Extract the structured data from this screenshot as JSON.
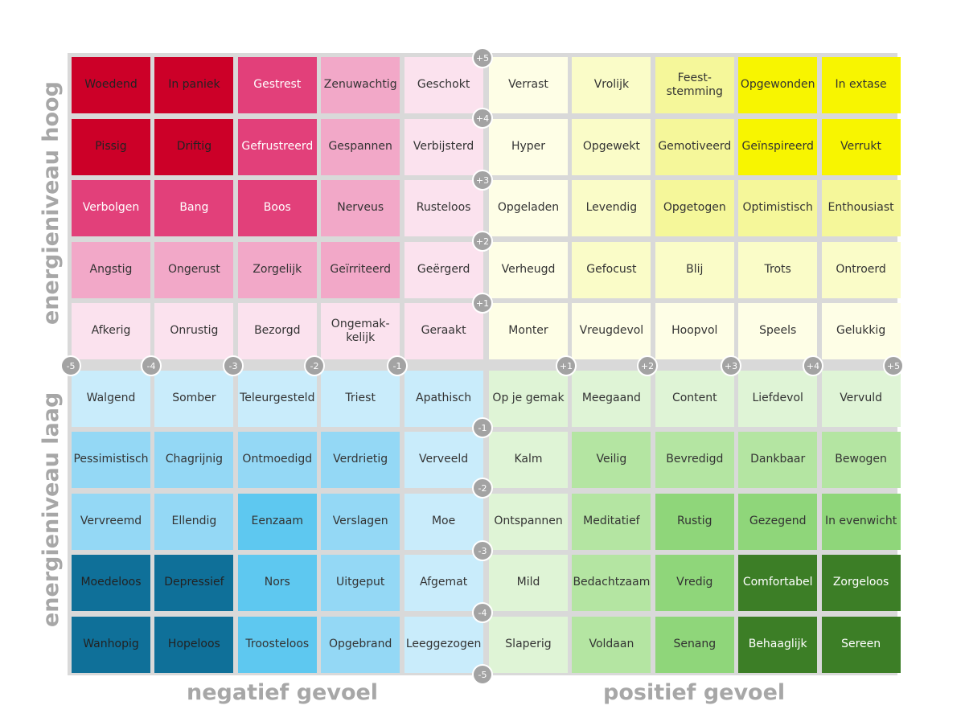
{
  "axis_labels": {
    "negative": "negatief gevoel",
    "positive": "positief gevoel",
    "high": "energieniveau hoog",
    "low": "energieniveau laag"
  },
  "palette": {
    "r1": "#cc0028",
    "r2": "#e2407a",
    "r3": "#f2a8c8",
    "r4": "#fbe2ee",
    "y1": "#f8f500",
    "y2": "#f5f79a",
    "y3": "#fafcc8",
    "y4": "#fefee6",
    "b1": "#0f7099",
    "b2": "#5ec8f0",
    "b3": "#94d8f5",
    "b4": "#c9ecfb",
    "g1": "#3c7e26",
    "g2": "#8fd67a",
    "g3": "#b4e5a2",
    "g4": "#dff4d6"
  },
  "rows": [
    {
      "cells": [
        {
          "text": "Woedend",
          "color": "r1"
        },
        {
          "text": "In paniek",
          "color": "r1"
        },
        {
          "text": "Gestrest",
          "color": "r2"
        },
        {
          "text": "Zenuwachtig",
          "color": "r3"
        },
        {
          "text": "Geschokt",
          "color": "r4"
        },
        {
          "text": "Verrast",
          "color": "y4"
        },
        {
          "text": "Vrolijk",
          "color": "y3"
        },
        {
          "text": "Feest-\nstemming",
          "color": "y2"
        },
        {
          "text": "Opgewonden",
          "color": "y1"
        },
        {
          "text": "In extase",
          "color": "y1"
        }
      ]
    },
    {
      "cells": [
        {
          "text": "Pissig",
          "color": "r1"
        },
        {
          "text": "Driftig",
          "color": "r1"
        },
        {
          "text": "Gefrustreerd",
          "color": "r2"
        },
        {
          "text": "Gespannen",
          "color": "r3"
        },
        {
          "text": "Verbijsterd",
          "color": "r4"
        },
        {
          "text": "Hyper",
          "color": "y4"
        },
        {
          "text": "Opgewekt",
          "color": "y3"
        },
        {
          "text": "Gemotiveerd",
          "color": "y2"
        },
        {
          "text": "Geïnspireerd",
          "color": "y1"
        },
        {
          "text": "Verrukt",
          "color": "y1"
        }
      ]
    },
    {
      "cells": [
        {
          "text": "Verbolgen",
          "color": "r2"
        },
        {
          "text": "Bang",
          "color": "r2"
        },
        {
          "text": "Boos",
          "color": "r2"
        },
        {
          "text": "Nerveus",
          "color": "r3"
        },
        {
          "text": "Rusteloos",
          "color": "r4"
        },
        {
          "text": "Opgeladen",
          "color": "y4"
        },
        {
          "text": "Levendig",
          "color": "y3"
        },
        {
          "text": "Opgetogen",
          "color": "y2"
        },
        {
          "text": "Optimistisch",
          "color": "y2"
        },
        {
          "text": "Enthousiast",
          "color": "y2"
        }
      ]
    },
    {
      "cells": [
        {
          "text": "Angstig",
          "color": "r3"
        },
        {
          "text": "Ongerust",
          "color": "r3"
        },
        {
          "text": "Zorgelijk",
          "color": "r3"
        },
        {
          "text": "Geïrriteerd",
          "color": "r3"
        },
        {
          "text": "Geërgerd",
          "color": "r4"
        },
        {
          "text": "Verheugd",
          "color": "y4"
        },
        {
          "text": "Gefocust",
          "color": "y3"
        },
        {
          "text": "Blij",
          "color": "y3"
        },
        {
          "text": "Trots",
          "color": "y3"
        },
        {
          "text": "Ontroerd",
          "color": "y3"
        }
      ]
    },
    {
      "cells": [
        {
          "text": "Afkerig",
          "color": "r4"
        },
        {
          "text": "Onrustig",
          "color": "r4"
        },
        {
          "text": "Bezorgd",
          "color": "r4"
        },
        {
          "text": "Ongemak-\nkelijk",
          "color": "r4"
        },
        {
          "text": "Geraakt",
          "color": "r4"
        },
        {
          "text": "Monter",
          "color": "y4"
        },
        {
          "text": "Vreugdevol",
          "color": "y4"
        },
        {
          "text": "Hoopvol",
          "color": "y4"
        },
        {
          "text": "Speels",
          "color": "y4"
        },
        {
          "text": "Gelukkig",
          "color": "y4"
        }
      ]
    },
    {
      "cells": [
        {
          "text": "Walgend",
          "color": "b4"
        },
        {
          "text": "Somber",
          "color": "b4"
        },
        {
          "text": "Teleurgesteld",
          "color": "b4"
        },
        {
          "text": "Triest",
          "color": "b4"
        },
        {
          "text": "Apathisch",
          "color": "b4"
        },
        {
          "text": "Op je gemak",
          "color": "g4"
        },
        {
          "text": "Meegaand",
          "color": "g4"
        },
        {
          "text": "Content",
          "color": "g4"
        },
        {
          "text": "Liefdevol",
          "color": "g4"
        },
        {
          "text": "Vervuld",
          "color": "g4"
        }
      ]
    },
    {
      "cells": [
        {
          "text": "Pessimistisch",
          "color": "b3"
        },
        {
          "text": "Chagrijnig",
          "color": "b3"
        },
        {
          "text": "Ontmoedigd",
          "color": "b3"
        },
        {
          "text": "Verdrietig",
          "color": "b3"
        },
        {
          "text": "Verveeld",
          "color": "b4"
        },
        {
          "text": "Kalm",
          "color": "g4"
        },
        {
          "text": "Veilig",
          "color": "g3"
        },
        {
          "text": "Bevredigd",
          "color": "g3"
        },
        {
          "text": "Dankbaar",
          "color": "g3"
        },
        {
          "text": "Bewogen",
          "color": "g3"
        }
      ]
    },
    {
      "cells": [
        {
          "text": "Vervreemd",
          "color": "b3"
        },
        {
          "text": "Ellendig",
          "color": "b3"
        },
        {
          "text": "Eenzaam",
          "color": "b2"
        },
        {
          "text": "Verslagen",
          "color": "b3"
        },
        {
          "text": "Moe",
          "color": "b4"
        },
        {
          "text": "Ontspannen",
          "color": "g4"
        },
        {
          "text": "Meditatief",
          "color": "g3"
        },
        {
          "text": "Rustig",
          "color": "g2"
        },
        {
          "text": "Gezegend",
          "color": "g2"
        },
        {
          "text": "In evenwicht",
          "color": "g2"
        }
      ]
    },
    {
      "cells": [
        {
          "text": "Moedeloos",
          "color": "b1"
        },
        {
          "text": "Depressief",
          "color": "b1"
        },
        {
          "text": "Nors",
          "color": "b2"
        },
        {
          "text": "Uitgeput",
          "color": "b3"
        },
        {
          "text": "Afgemat",
          "color": "b4"
        },
        {
          "text": "Mild",
          "color": "g4"
        },
        {
          "text": "Bedachtzaam",
          "color": "g3"
        },
        {
          "text": "Vredig",
          "color": "g2"
        },
        {
          "text": "Comfortabel",
          "color": "g1"
        },
        {
          "text": "Zorgeloos",
          "color": "g1"
        }
      ]
    },
    {
      "cells": [
        {
          "text": "Wanhopig",
          "color": "b1"
        },
        {
          "text": "Hopeloos",
          "color": "b1"
        },
        {
          "text": "Troosteloos",
          "color": "b2"
        },
        {
          "text": "Opgebrand",
          "color": "b3"
        },
        {
          "text": "Leeggezogen",
          "color": "b4"
        },
        {
          "text": "Slaperig",
          "color": "g4"
        },
        {
          "text": "Voldaan",
          "color": "g3"
        },
        {
          "text": "Senang",
          "color": "g2"
        },
        {
          "text": "Behaaglijk",
          "color": "g1"
        },
        {
          "text": "Sereen",
          "color": "g1"
        }
      ]
    }
  ],
  "v_markers": [
    "+5",
    "+4",
    "+3",
    "+2",
    "+1",
    "-1",
    "-2",
    "-3",
    "-4",
    "-5"
  ],
  "h_markers": [
    "-5",
    "-4",
    "-3",
    "-2",
    "-1",
    "+1",
    "+2",
    "+3",
    "+4",
    "+5"
  ]
}
